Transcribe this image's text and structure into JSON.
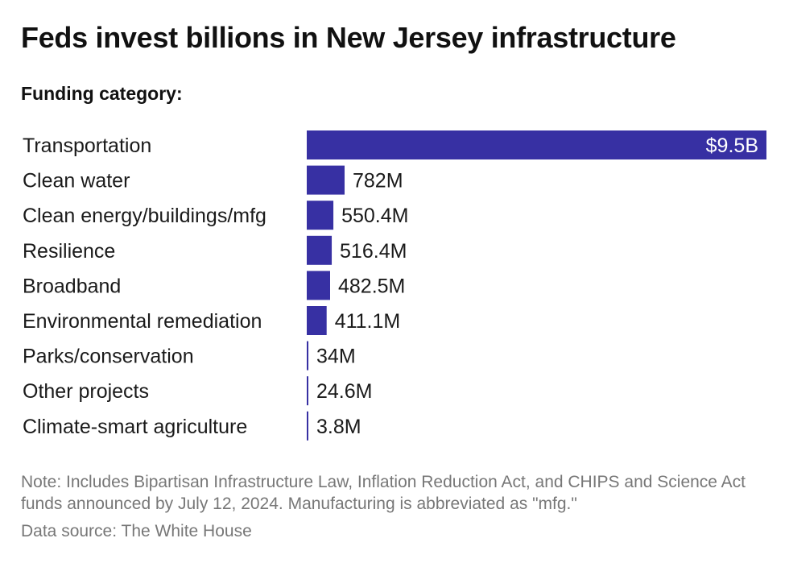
{
  "chart_data": {
    "type": "bar",
    "orientation": "horizontal",
    "title": "Feds invest billions in New Jersey infrastructure",
    "subtitle": "Funding category:",
    "unit": "USD millions",
    "categories": [
      "Transportation",
      "Clean water",
      "Clean energy/buildings/mfg",
      "Resilience",
      "Broadband",
      "Environmental remediation",
      "Parks/conservation",
      "Other projects",
      "Climate-smart agriculture"
    ],
    "values": [
      9500,
      782,
      550.4,
      516.4,
      482.5,
      411.1,
      34,
      24.6,
      3.8
    ],
    "value_labels": [
      "$9.5B",
      "782M",
      "550.4M",
      "516.4M",
      "482.5M",
      "411.1M",
      "34M",
      "24.6M",
      "3.8M"
    ],
    "xlim": [
      0,
      9500
    ],
    "bar_color": "#3730a3",
    "grid": false,
    "legend": "none"
  },
  "note": "Note: Includes Bipartisan Infrastructure Law, Inflation Reduction Act, and CHIPS and Science Act funds announced by July 12, 2024. Manufacturing is abbreviated as \"mfg.\"",
  "source": "Data source: The White House"
}
